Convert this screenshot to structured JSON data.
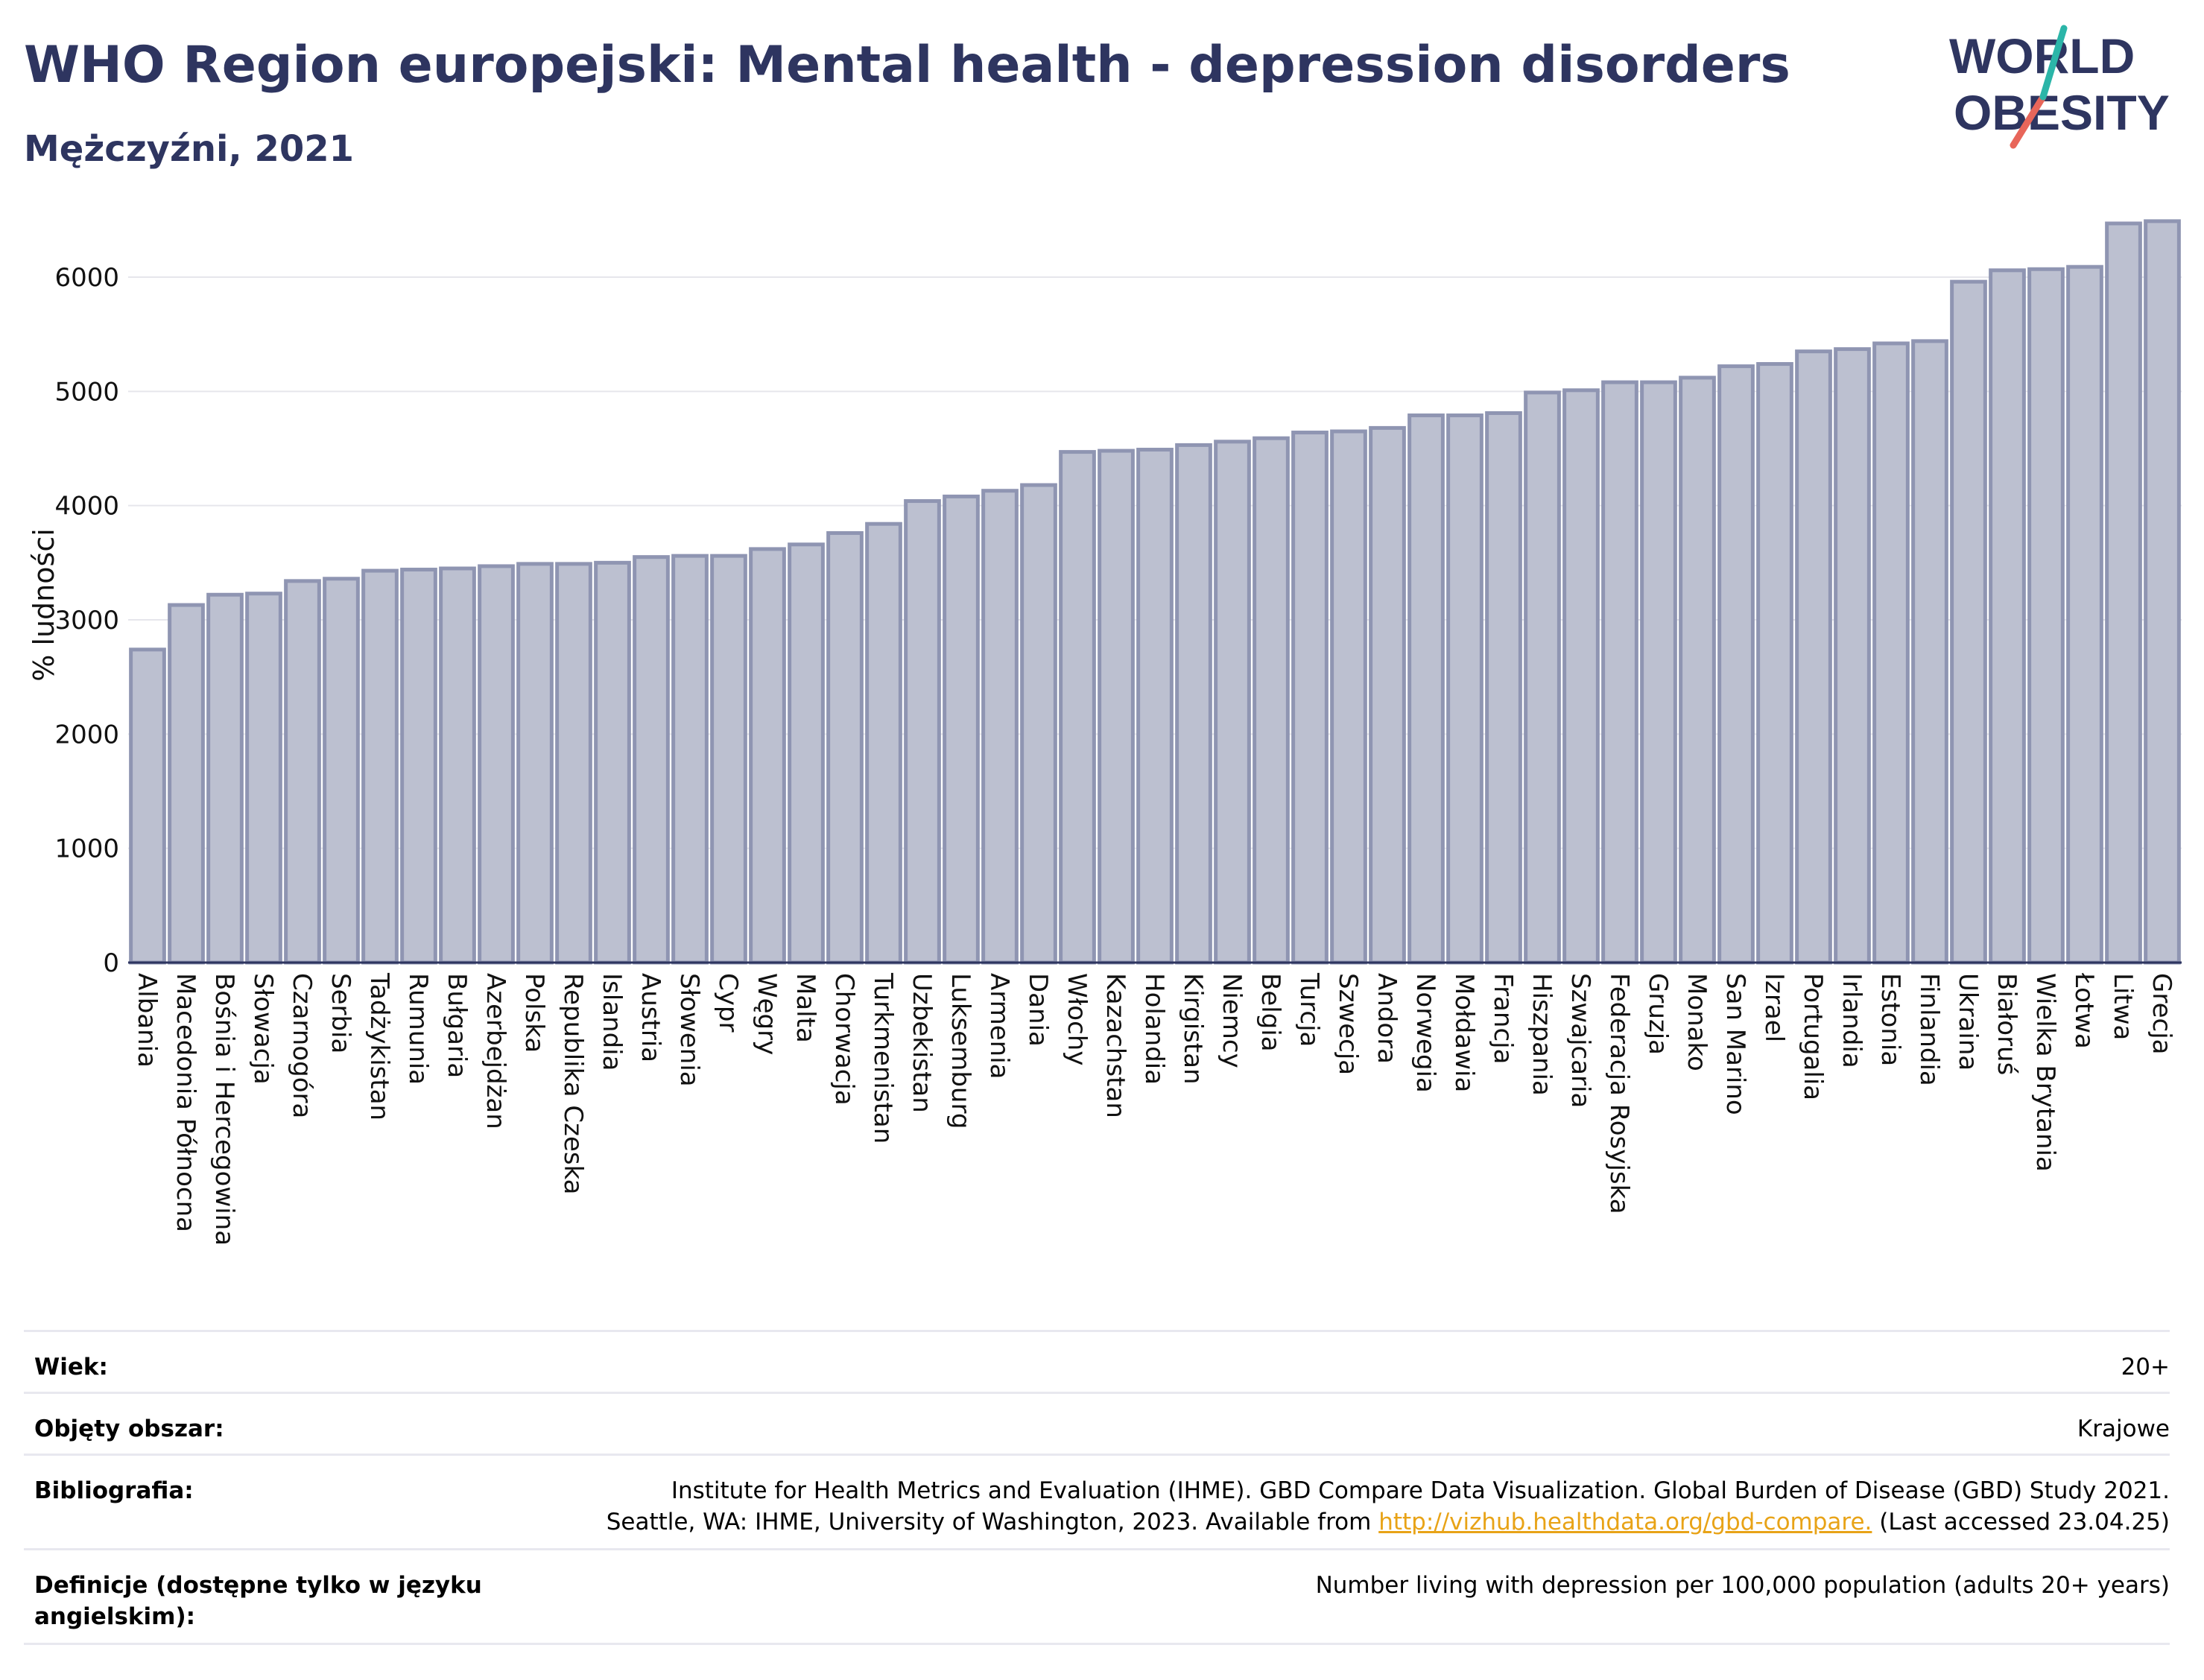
{
  "header": {
    "title": "WHO Region europejski: Mental health - depression disorders",
    "subtitle": "Mężczyźni, 2021"
  },
  "logo": {
    "line1": "WORLD",
    "line2": "OBESITY",
    "accent_teal": "#2bb5a8",
    "accent_red": "#e8665a",
    "text_color": "#2e3560"
  },
  "colors": {
    "bar_fill": "#bcc0d0",
    "bar_stroke": "#8f95b2",
    "axis": "#2e3560",
    "grid": "#e6e6ec"
  },
  "chart_data": {
    "type": "bar",
    "title": "WHO Region europejski: Mental health - depression disorders",
    "subtitle": "Mężczyźni, 2021",
    "xlabel": "",
    "ylabel": "% ludności",
    "ylim": [
      0,
      6600
    ],
    "yticks": [
      0,
      1000,
      2000,
      3000,
      4000,
      5000,
      6000
    ],
    "grid": true,
    "categories": [
      "Albania",
      "Macedonia Północna",
      "Bośnia i Hercegowina",
      "Słowacja",
      "Czarnogóra",
      "Serbia",
      "Tadżykistan",
      "Rumunia",
      "Bułgaria",
      "Azerbejdżan",
      "Polska",
      "Republika Czeska",
      "Islandia",
      "Austria",
      "Słowenia",
      "Cypr",
      "Węgry",
      "Malta",
      "Chorwacja",
      "Turkmenistan",
      "Uzbekistan",
      "Luksemburg",
      "Armenia",
      "Dania",
      "Włochy",
      "Kazachstan",
      "Holandia",
      "Kirgistan",
      "Niemcy",
      "Belgia",
      "Turcja",
      "Szwecja",
      "Andora",
      "Norwegia",
      "Mołdawia",
      "Francja",
      "Hiszpania",
      "Szwajcaria",
      "Federacja Rosyjska",
      "Gruzja",
      "Monako",
      "San Marino",
      "Izrael",
      "Portugalia",
      "Irlandia",
      "Estonia",
      "Finlandia",
      "Ukraina",
      "Białoruś",
      "Wielka Brytania",
      "Łotwa",
      "Litwa",
      "Grecja"
    ],
    "values": [
      2740,
      3130,
      3220,
      3230,
      3340,
      3360,
      3430,
      3440,
      3450,
      3470,
      3490,
      3490,
      3500,
      3550,
      3560,
      3560,
      3620,
      3660,
      3760,
      3840,
      4040,
      4080,
      4130,
      4180,
      4470,
      4480,
      4490,
      4530,
      4560,
      4590,
      4640,
      4650,
      4680,
      4790,
      4790,
      4810,
      4990,
      5010,
      5080,
      5080,
      5120,
      5220,
      5240,
      5350,
      5370,
      5420,
      5440,
      5960,
      6060,
      6070,
      6090,
      6470,
      6490
    ]
  },
  "info": {
    "rows": [
      {
        "label": "Wiek:",
        "value": "20+"
      },
      {
        "label": "Objęty obszar:",
        "value": "Krajowe"
      },
      {
        "label": "Bibliografia:",
        "value_line1": "Institute for Health Metrics and Evaluation (IHME). GBD Compare Data Visualization. Global Burden of Disease (GBD) Study 2021.",
        "value_line2_pre": "Seattle, WA: IHME, University of Washington, 2023. Available from ",
        "value_link": "http://vizhub.healthdata.org/gbd-compare.",
        "value_line2_post": " (Last accessed 23.04.25)"
      },
      {
        "label": "Definicje (dostępne tylko w języku angielskim):",
        "value": "Number living with depression per 100,000 population (adults 20+ years)"
      }
    ]
  }
}
